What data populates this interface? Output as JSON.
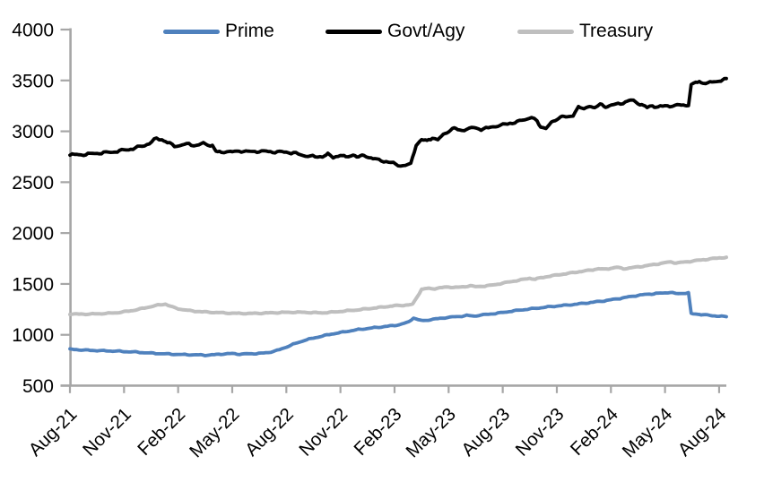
{
  "chart_data": {
    "type": "line",
    "title": "",
    "xlabel": "",
    "ylabel": "",
    "grid": false,
    "legend_position": "top",
    "background_color": "#FFFFFF",
    "axis_color": "#A6A6A6",
    "text_color": "#000000",
    "ylim": [
      500,
      4000
    ],
    "yticks": [
      500,
      1000,
      1500,
      2000,
      2500,
      3000,
      3500,
      4000
    ],
    "x_tick_labels": [
      "Aug-21",
      "Nov-21",
      "Feb-22",
      "May-22",
      "Aug-22",
      "Nov-22",
      "Feb-23",
      "May-23",
      "Aug-23",
      "Nov-23",
      "Feb-24",
      "May-24",
      "Aug-24"
    ],
    "x_index_unit": "months since Aug-2021",
    "x_months_per_tick": 3,
    "x_index_range": [
      0,
      36.4
    ],
    "series": [
      {
        "name": "Prime",
        "color": "#4F81BD",
        "points": [
          [
            0,
            858
          ],
          [
            0.5,
            853
          ],
          [
            1,
            848
          ],
          [
            1.5,
            845
          ],
          [
            2,
            842
          ],
          [
            2.5,
            840
          ],
          [
            3,
            836
          ],
          [
            3.5,
            832
          ],
          [
            4,
            826
          ],
          [
            4.5,
            820
          ],
          [
            5,
            815
          ],
          [
            5.5,
            811
          ],
          [
            6,
            807
          ],
          [
            6.5,
            805
          ],
          [
            7,
            803
          ],
          [
            7.5,
            800
          ],
          [
            8,
            804
          ],
          [
            8.5,
            812
          ],
          [
            9,
            816
          ],
          [
            9.4,
            810
          ],
          [
            9.8,
            813
          ],
          [
            10.2,
            815
          ],
          [
            10.6,
            818
          ],
          [
            11,
            826
          ],
          [
            11.5,
            846
          ],
          [
            12,
            880
          ],
          [
            12.5,
            915
          ],
          [
            13,
            945
          ],
          [
            13.5,
            968
          ],
          [
            14,
            988
          ],
          [
            14.5,
            1008
          ],
          [
            15,
            1022
          ],
          [
            15.5,
            1038
          ],
          [
            16,
            1052
          ],
          [
            16.5,
            1062
          ],
          [
            17,
            1072
          ],
          [
            17.5,
            1082
          ],
          [
            18,
            1092
          ],
          [
            18.4,
            1105
          ],
          [
            18.8,
            1128
          ],
          [
            19.05,
            1168
          ],
          [
            19.3,
            1148
          ],
          [
            19.6,
            1138
          ],
          [
            20,
            1150
          ],
          [
            20.4,
            1158
          ],
          [
            20.8,
            1168
          ],
          [
            21.2,
            1175
          ],
          [
            21.6,
            1180
          ],
          [
            22,
            1190
          ],
          [
            22.4,
            1184
          ],
          [
            22.8,
            1194
          ],
          [
            23.2,
            1202
          ],
          [
            23.6,
            1210
          ],
          [
            24,
            1220
          ],
          [
            24.5,
            1232
          ],
          [
            25,
            1244
          ],
          [
            25.5,
            1254
          ],
          [
            26,
            1264
          ],
          [
            26.5,
            1274
          ],
          [
            27,
            1283
          ],
          [
            27.5,
            1291
          ],
          [
            28,
            1300
          ],
          [
            28.5,
            1310
          ],
          [
            29,
            1320
          ],
          [
            29.5,
            1331
          ],
          [
            30,
            1344
          ],
          [
            30.5,
            1358
          ],
          [
            31,
            1373
          ],
          [
            31.5,
            1388
          ],
          [
            32,
            1398
          ],
          [
            32.5,
            1406
          ],
          [
            33,
            1412
          ],
          [
            33.3,
            1418
          ],
          [
            33.6,
            1404
          ],
          [
            34,
            1408
          ],
          [
            34.3,
            1412
          ],
          [
            34.45,
            1207
          ],
          [
            34.8,
            1203
          ],
          [
            35.1,
            1198
          ],
          [
            35.5,
            1190
          ],
          [
            36,
            1183
          ],
          [
            36.4,
            1178
          ]
        ]
      },
      {
        "name": "Govt/Agy",
        "color": "#000000",
        "points": [
          [
            0,
            2768
          ],
          [
            0.5,
            2770
          ],
          [
            1,
            2775
          ],
          [
            1.5,
            2785
          ],
          [
            2,
            2790
          ],
          [
            2.5,
            2800
          ],
          [
            3,
            2815
          ],
          [
            3.5,
            2830
          ],
          [
            4,
            2855
          ],
          [
            4.4,
            2880
          ],
          [
            4.8,
            2930
          ],
          [
            5.1,
            2920
          ],
          [
            5.4,
            2890
          ],
          [
            5.8,
            2855
          ],
          [
            6.2,
            2865
          ],
          [
            6.6,
            2875
          ],
          [
            7,
            2860
          ],
          [
            7.4,
            2880
          ],
          [
            7.9,
            2860
          ],
          [
            8.1,
            2800
          ],
          [
            8.4,
            2790
          ],
          [
            8.7,
            2805
          ],
          [
            9,
            2795
          ],
          [
            9.5,
            2808
          ],
          [
            10,
            2798
          ],
          [
            10.5,
            2805
          ],
          [
            11,
            2800
          ],
          [
            11.5,
            2798
          ],
          [
            12,
            2795
          ],
          [
            12.4,
            2788
          ],
          [
            12.8,
            2768
          ],
          [
            13.2,
            2758
          ],
          [
            13.6,
            2748
          ],
          [
            14,
            2755
          ],
          [
            14.3,
            2772
          ],
          [
            14.6,
            2744
          ],
          [
            15,
            2768
          ],
          [
            15.3,
            2742
          ],
          [
            15.7,
            2772
          ],
          [
            16,
            2745
          ],
          [
            16.3,
            2762
          ],
          [
            16.7,
            2740
          ],
          [
            17,
            2722
          ],
          [
            17.4,
            2708
          ],
          [
            17.8,
            2692
          ],
          [
            18.2,
            2668
          ],
          [
            18.6,
            2662
          ],
          [
            18.9,
            2680
          ],
          [
            19.2,
            2870
          ],
          [
            19.5,
            2915
          ],
          [
            19.8,
            2905
          ],
          [
            20.1,
            2940
          ],
          [
            20.4,
            2915
          ],
          [
            20.7,
            2965
          ],
          [
            21,
            3005
          ],
          [
            21.3,
            3030
          ],
          [
            21.6,
            3008
          ],
          [
            22,
            3022
          ],
          [
            22.4,
            3035
          ],
          [
            22.8,
            3022
          ],
          [
            23.2,
            3032
          ],
          [
            23.6,
            3052
          ],
          [
            24,
            3062
          ],
          [
            24.4,
            3080
          ],
          [
            24.8,
            3092
          ],
          [
            25.2,
            3115
          ],
          [
            25.6,
            3140
          ],
          [
            25.9,
            3095
          ],
          [
            26.1,
            3045
          ],
          [
            26.4,
            3035
          ],
          [
            26.7,
            3080
          ],
          [
            27,
            3120
          ],
          [
            27.3,
            3155
          ],
          [
            27.6,
            3130
          ],
          [
            27.9,
            3160
          ],
          [
            28.2,
            3245
          ],
          [
            28.5,
            3210
          ],
          [
            28.8,
            3255
          ],
          [
            29.1,
            3230
          ],
          [
            29.4,
            3262
          ],
          [
            29.7,
            3245
          ],
          [
            30,
            3255
          ],
          [
            30.4,
            3268
          ],
          [
            30.8,
            3288
          ],
          [
            31.1,
            3305
          ],
          [
            31.4,
            3288
          ],
          [
            31.7,
            3262
          ],
          [
            32,
            3232
          ],
          [
            32.3,
            3252
          ],
          [
            32.6,
            3240
          ],
          [
            33,
            3248
          ],
          [
            33.4,
            3252
          ],
          [
            33.8,
            3256
          ],
          [
            34.1,
            3258
          ],
          [
            34.3,
            3262
          ],
          [
            34.45,
            3452
          ],
          [
            34.7,
            3478
          ],
          [
            34.9,
            3488
          ],
          [
            35.1,
            3478
          ],
          [
            35.4,
            3472
          ],
          [
            35.7,
            3488
          ],
          [
            36,
            3498
          ],
          [
            36.2,
            3505
          ],
          [
            36.4,
            3518
          ]
        ]
      },
      {
        "name": "Treasury",
        "color": "#BFBFBF",
        "points": [
          [
            0,
            1205
          ],
          [
            0.5,
            1203
          ],
          [
            1,
            1204
          ],
          [
            1.5,
            1206
          ],
          [
            2,
            1210
          ],
          [
            2.5,
            1216
          ],
          [
            3,
            1226
          ],
          [
            3.5,
            1240
          ],
          [
            4,
            1258
          ],
          [
            4.5,
            1278
          ],
          [
            5,
            1295
          ],
          [
            5.3,
            1302
          ],
          [
            5.7,
            1272
          ],
          [
            6,
            1256
          ],
          [
            6.4,
            1244
          ],
          [
            6.8,
            1234
          ],
          [
            7.2,
            1228
          ],
          [
            7.6,
            1224
          ],
          [
            8,
            1220
          ],
          [
            8.5,
            1216
          ],
          [
            9,
            1212
          ],
          [
            9.5,
            1210
          ],
          [
            10,
            1210
          ],
          [
            10.5,
            1212
          ],
          [
            11,
            1215
          ],
          [
            11.5,
            1218
          ],
          [
            12,
            1221
          ],
          [
            12.5,
            1222
          ],
          [
            13,
            1221
          ],
          [
            13.5,
            1218
          ],
          [
            14,
            1216
          ],
          [
            14.5,
            1222
          ],
          [
            15,
            1230
          ],
          [
            15.5,
            1238
          ],
          [
            16,
            1246
          ],
          [
            16.5,
            1256
          ],
          [
            17,
            1266
          ],
          [
            17.5,
            1276
          ],
          [
            18,
            1286
          ],
          [
            18.5,
            1290
          ],
          [
            19,
            1298
          ],
          [
            19.5,
            1448
          ],
          [
            19.8,
            1455
          ],
          [
            20.1,
            1452
          ],
          [
            20.5,
            1462
          ],
          [
            21,
            1470
          ],
          [
            21.4,
            1466
          ],
          [
            21.8,
            1470
          ],
          [
            22.2,
            1484
          ],
          [
            22.5,
            1472
          ],
          [
            23,
            1480
          ],
          [
            23.5,
            1490
          ],
          [
            24,
            1508
          ],
          [
            24.5,
            1524
          ],
          [
            25,
            1540
          ],
          [
            25.5,
            1556
          ],
          [
            25.8,
            1546
          ],
          [
            26.1,
            1560
          ],
          [
            26.5,
            1574
          ],
          [
            27,
            1588
          ],
          [
            27.5,
            1600
          ],
          [
            28,
            1614
          ],
          [
            28.5,
            1626
          ],
          [
            29,
            1640
          ],
          [
            29.3,
            1650
          ],
          [
            29.6,
            1644
          ],
          [
            30,
            1654
          ],
          [
            30.3,
            1664
          ],
          [
            30.7,
            1650
          ],
          [
            31,
            1656
          ],
          [
            31.5,
            1668
          ],
          [
            32,
            1680
          ],
          [
            32.5,
            1694
          ],
          [
            33,
            1708
          ],
          [
            33.3,
            1718
          ],
          [
            33.6,
            1706
          ],
          [
            34,
            1714
          ],
          [
            34.5,
            1724
          ],
          [
            35,
            1736
          ],
          [
            35.5,
            1746
          ],
          [
            36,
            1756
          ],
          [
            36.4,
            1762
          ]
        ]
      }
    ]
  }
}
